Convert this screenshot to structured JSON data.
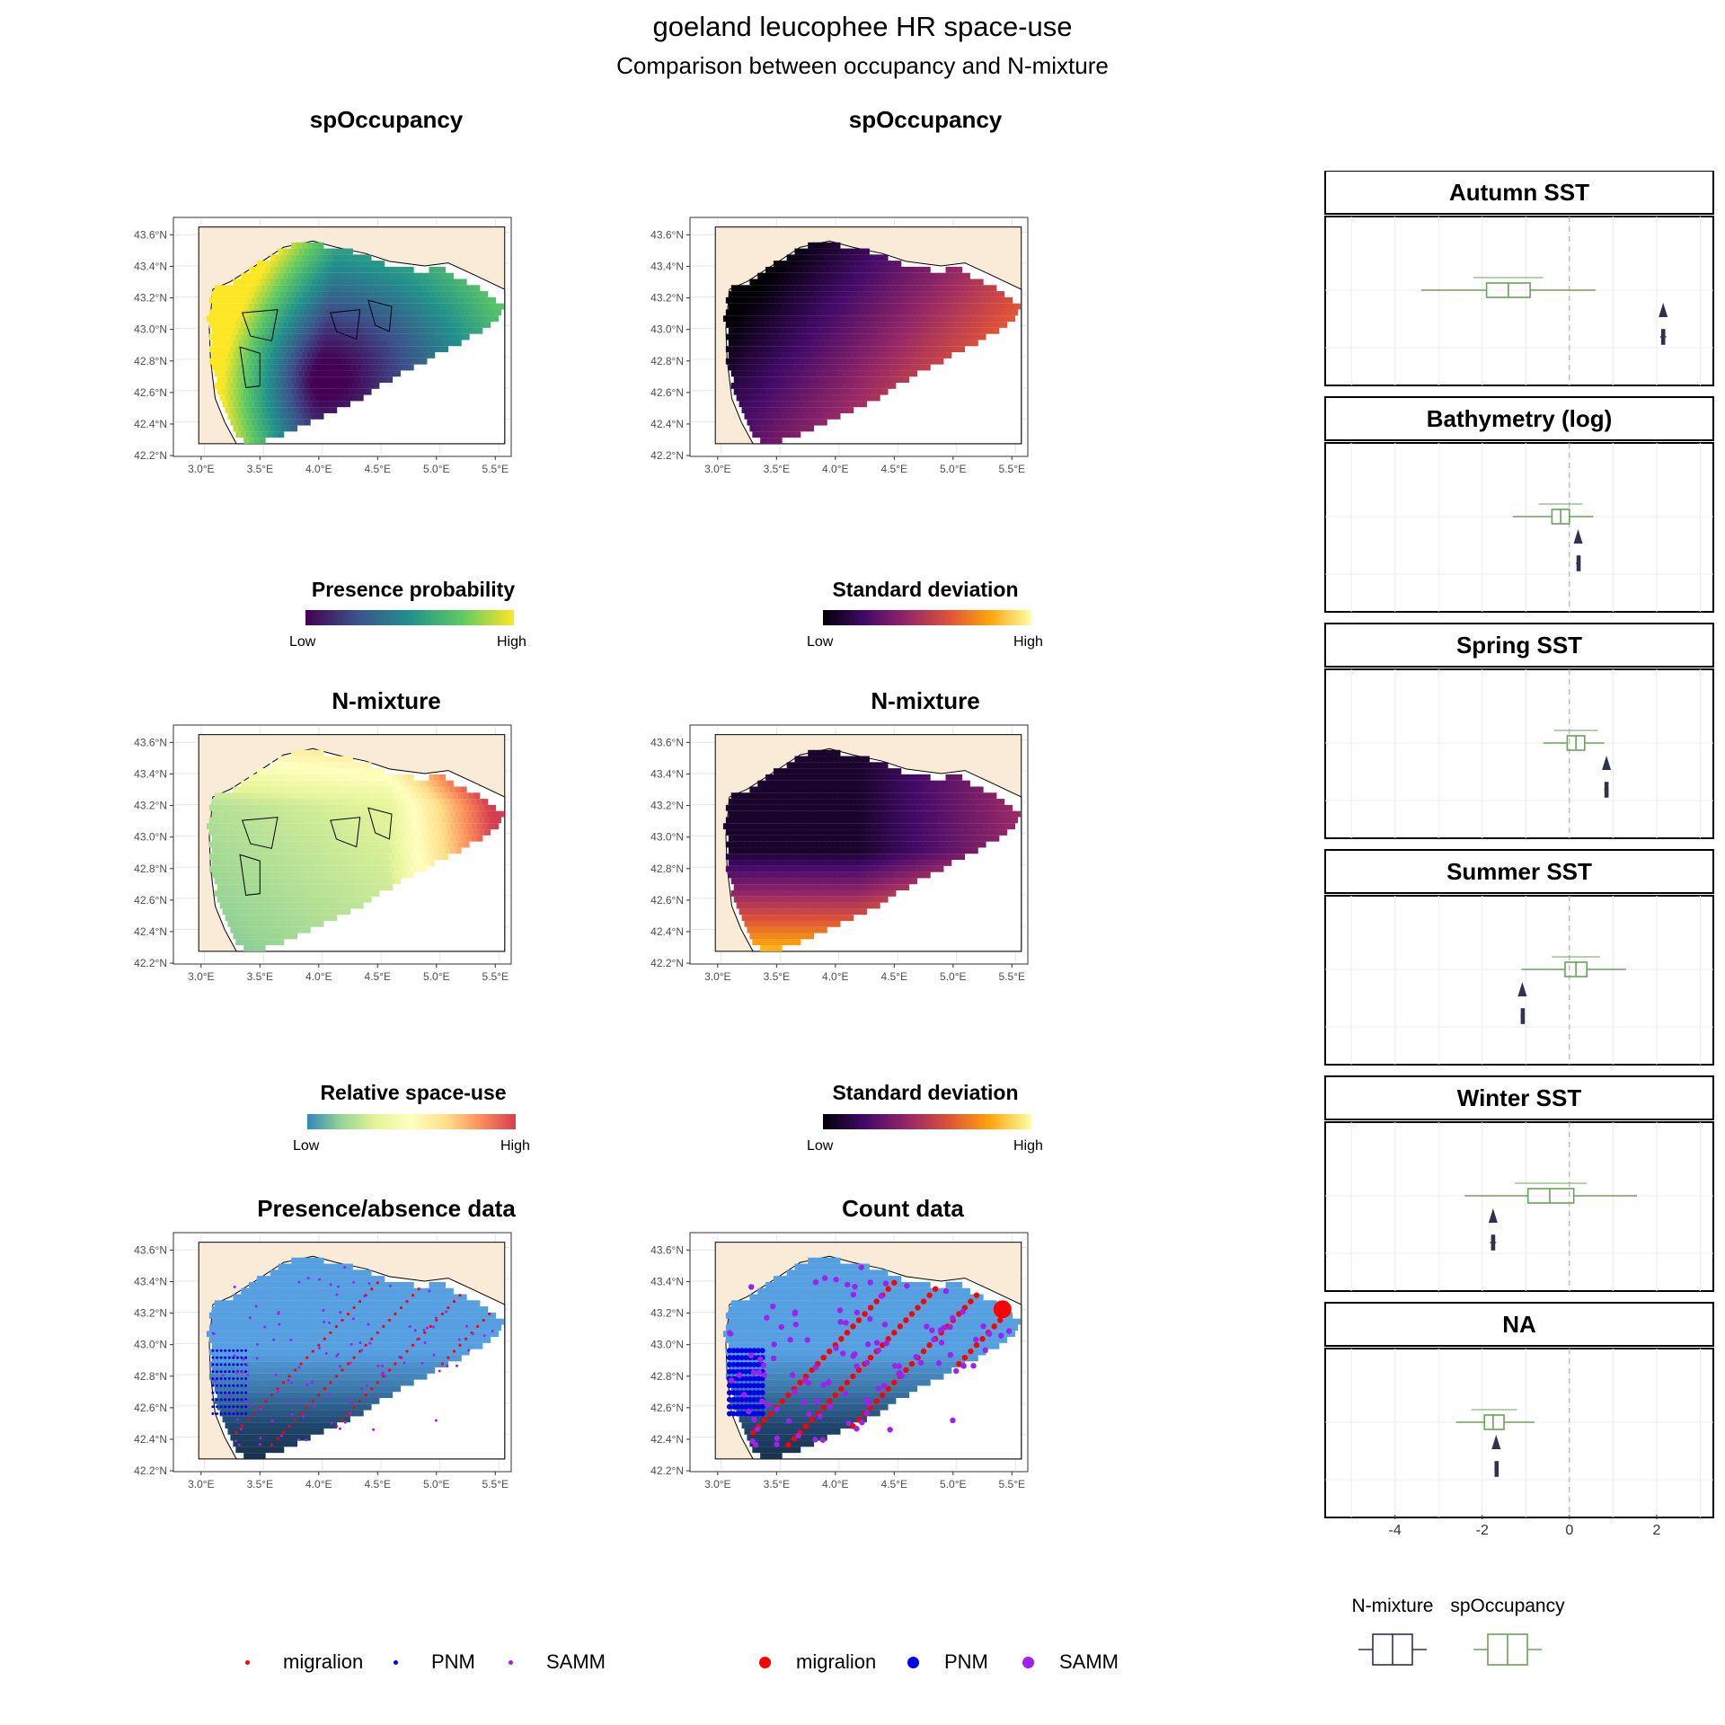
{
  "header": {
    "title": "goeland leucophee HR space-use",
    "subtitle": "Comparison between occupancy and N-mixture"
  },
  "axes": {
    "lat_ticks": [
      "43.6°N",
      "43.4°N",
      "43.2°N",
      "43.0°N",
      "42.8°N",
      "42.6°N",
      "42.4°N",
      "42.2°N"
    ],
    "lon_ticks": [
      "3.0°E",
      "3.5°E",
      "4.0°E",
      "4.5°E",
      "5.0°E",
      "5.5°E"
    ]
  },
  "maps": [
    {
      "title": "spOccupancy",
      "legend_title": "Presence probability",
      "scale": "viridis",
      "low": "Low",
      "high": "High"
    },
    {
      "title": "spOccupancy",
      "legend_title": "Standard deviation",
      "scale": "inferno",
      "low": "Low",
      "high": "High"
    },
    {
      "title": "N-mixture",
      "legend_title": "Relative space-use",
      "scale": "spectral",
      "low": "Low",
      "high": "High"
    },
    {
      "title": "N-mixture",
      "legend_title": "Standard deviation",
      "scale": "inferno",
      "low": "Low",
      "high": "High"
    },
    {
      "title": "Presence/absence data"
    },
    {
      "title": "Count data"
    }
  ],
  "point_legend": {
    "items": [
      {
        "label": "migralion",
        "color": "#ff0000"
      },
      {
        "label": "PNM",
        "color": "#0000ee"
      },
      {
        "label": "SAMM",
        "color": "#a020f0"
      }
    ]
  },
  "chart_data": [
    {
      "type": "heatmap",
      "title": "spOccupancy",
      "legend_title": "Presence probability",
      "color_scale": "viridis",
      "xlim": [
        2.8,
        5.7
      ],
      "ylim": [
        42.2,
        43.65
      ]
    },
    {
      "type": "heatmap",
      "title": "spOccupancy",
      "legend_title": "Standard deviation",
      "color_scale": "inferno",
      "xlim": [
        2.8,
        5.7
      ],
      "ylim": [
        42.2,
        43.65
      ]
    },
    {
      "type": "heatmap",
      "title": "N-mixture",
      "legend_title": "Relative space-use",
      "color_scale": "spectral-reversed",
      "xlim": [
        2.8,
        5.7
      ],
      "ylim": [
        42.2,
        43.65
      ]
    },
    {
      "type": "heatmap",
      "title": "N-mixture",
      "legend_title": "Standard deviation",
      "color_scale": "inferno",
      "xlim": [
        2.8,
        5.7
      ],
      "ylim": [
        42.2,
        43.65
      ]
    },
    {
      "type": "scatter",
      "title": "Presence/absence data",
      "series": [
        {
          "name": "migralion"
        },
        {
          "name": "PNM"
        },
        {
          "name": "SAMM"
        }
      ]
    },
    {
      "type": "scatter",
      "title": "Count data",
      "series": [
        {
          "name": "migralion"
        },
        {
          "name": "PNM"
        },
        {
          "name": "SAMM"
        }
      ]
    },
    {
      "type": "boxplot",
      "facets": [
        "Autumn SST",
        "Bathymetry (log)",
        "Spring SST",
        "Summer SST",
        "Winter SST",
        "NA"
      ],
      "x_ticks": [
        "-4",
        "-2",
        "0",
        "2"
      ],
      "xlim": [
        -5.6,
        3.3
      ],
      "series_names": [
        "N-mixture",
        "spOccupancy"
      ],
      "series_colors": {
        "N-mixture": "#2e3350",
        "spOccupancy": "#6aa15c"
      },
      "boxes": [
        {
          "facet": "Autumn SST",
          "series": "spOccupancy",
          "whisker_lo": -3.4,
          "q1": -1.9,
          "median": -1.4,
          "q3": -0.9,
          "whisker_hi": 0.6
        },
        {
          "facet": "Autumn SST",
          "series": "N-mixture",
          "whisker_lo": 2.08,
          "q1": 2.12,
          "median": 2.15,
          "q3": 2.18,
          "whisker_hi": 2.22
        },
        {
          "facet": "Bathymetry (log)",
          "series": "spOccupancy",
          "whisker_lo": -1.3,
          "q1": -0.4,
          "median": -0.2,
          "q3": 0.0,
          "whisker_hi": 0.55
        },
        {
          "facet": "Bathymetry (log)",
          "series": "N-mixture",
          "whisker_lo": 0.15,
          "q1": 0.18,
          "median": 0.2,
          "q3": 0.22,
          "whisker_hi": 0.25
        },
        {
          "facet": "Spring SST",
          "series": "spOccupancy",
          "whisker_lo": -0.6,
          "q1": -0.05,
          "median": 0.15,
          "q3": 0.35,
          "whisker_hi": 0.8
        },
        {
          "facet": "Spring SST",
          "series": "N-mixture",
          "whisker_lo": 0.8,
          "q1": 0.82,
          "median": 0.85,
          "q3": 0.88,
          "whisker_hi": 0.9
        },
        {
          "facet": "Summer SST",
          "series": "spOccupancy",
          "whisker_lo": -1.1,
          "q1": -0.1,
          "median": 0.15,
          "q3": 0.4,
          "whisker_hi": 1.3
        },
        {
          "facet": "Summer SST",
          "series": "N-mixture",
          "whisker_lo": -1.12,
          "q1": -1.1,
          "median": -1.08,
          "q3": -1.06,
          "whisker_hi": -1.04
        },
        {
          "facet": "Winter SST",
          "series": "spOccupancy",
          "whisker_lo": -2.4,
          "q1": -0.95,
          "median": -0.45,
          "q3": 0.1,
          "whisker_hi": 1.55
        },
        {
          "facet": "Winter SST",
          "series": "N-mixture",
          "whisker_lo": -1.82,
          "q1": -1.78,
          "median": -1.75,
          "q3": -1.72,
          "whisker_hi": -1.68
        },
        {
          "facet": "NA",
          "series": "spOccupancy",
          "whisker_lo": -2.6,
          "q1": -1.95,
          "median": -1.75,
          "q3": -1.5,
          "whisker_hi": -0.8
        },
        {
          "facet": "NA",
          "series": "N-mixture",
          "whisker_lo": -1.72,
          "q1": -1.7,
          "median": -1.68,
          "q3": -1.66,
          "whisker_hi": -1.64
        }
      ]
    }
  ]
}
